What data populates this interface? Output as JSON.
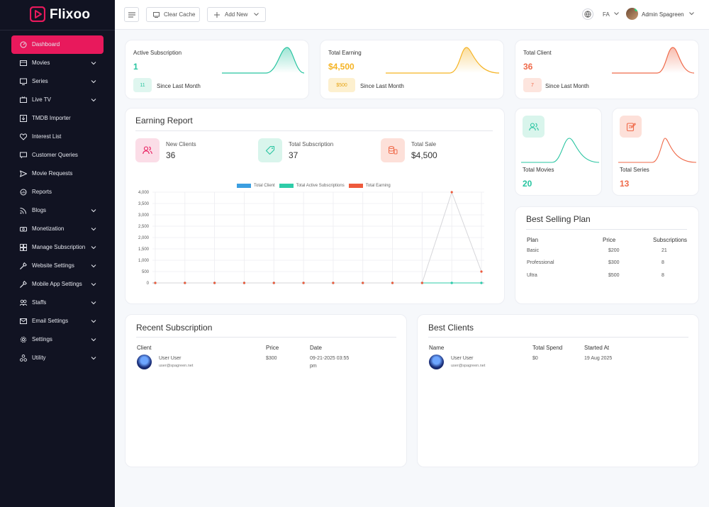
{
  "brand": {
    "name": "Flixoo",
    "accent": "#e8195c"
  },
  "sidebar": {
    "items": [
      {
        "label": "Dashboard",
        "icon": "dashboard-icon",
        "active": true,
        "has_children": false
      },
      {
        "label": "Movies",
        "icon": "movie-icon",
        "has_children": true
      },
      {
        "label": "Series",
        "icon": "series-icon",
        "has_children": true
      },
      {
        "label": "Live TV",
        "icon": "tv-icon",
        "has_children": true
      },
      {
        "label": "TMDB Importer",
        "icon": "import-icon",
        "has_children": false
      },
      {
        "label": "Interest List",
        "icon": "heart-icon",
        "has_children": false
      },
      {
        "label": "Customer Queries",
        "icon": "query-icon",
        "has_children": false
      },
      {
        "label": "Movie Requests",
        "icon": "send-icon",
        "has_children": false
      },
      {
        "label": "Reports",
        "icon": "report-icon",
        "has_children": false
      },
      {
        "label": "Blogs",
        "icon": "rss-icon",
        "has_children": true
      },
      {
        "label": "Monetization",
        "icon": "money-icon",
        "has_children": true
      },
      {
        "label": "Manage Subscription",
        "icon": "subscription-icon",
        "has_children": true
      },
      {
        "label": "Website Settings",
        "icon": "wrench-icon",
        "has_children": true
      },
      {
        "label": "Mobile App Settings",
        "icon": "wrench-icon",
        "has_children": true
      },
      {
        "label": "Staffs",
        "icon": "staff-icon",
        "has_children": true
      },
      {
        "label": "Email Settings",
        "icon": "mail-icon",
        "has_children": true
      },
      {
        "label": "Settings",
        "icon": "gear-icon",
        "has_children": true
      },
      {
        "label": "Utility",
        "icon": "utility-icon",
        "has_children": true
      }
    ]
  },
  "topbar": {
    "clear_cache": "Clear Cache",
    "add_new": "Add New",
    "language": "FA",
    "user_name": "Admin Spagreen"
  },
  "stats": [
    {
      "title": "Active Subscription",
      "value": "1",
      "pill": "11",
      "since": "Since Last Month",
      "color": "#27c4a0",
      "pill_bg": "#dff6ef"
    },
    {
      "title": "Total Earning",
      "value": "$4,500",
      "pill": "$500",
      "since": "Since Last Month",
      "color": "#f5b323",
      "pill_bg": "#fdf0cf"
    },
    {
      "title": "Total Client",
      "value": "36",
      "pill": "7",
      "since": "Since Last Month",
      "color": "#ef6a4a",
      "pill_bg": "#fde5de"
    }
  ],
  "earning_report": {
    "title": "Earning Report",
    "items": [
      {
        "label": "New Clients",
        "value": "36",
        "icon": "users-icon",
        "bg": "#fbdde7",
        "fg": "#e8195c"
      },
      {
        "label": "Total Subscription",
        "value": "37",
        "icon": "tag-icon",
        "bg": "#d9f5ec",
        "fg": "#27c4a0"
      },
      {
        "label": "Total Sale",
        "value": "$4,500",
        "icon": "coins-icon",
        "bg": "#fde0d9",
        "fg": "#ef6a4a"
      }
    ]
  },
  "chart_data": {
    "type": "line",
    "title": "",
    "xlabel": "",
    "ylabel": "",
    "ylim": [
      0,
      4000
    ],
    "yticks": [
      "0",
      "500",
      "1,000",
      "1,500",
      "2,000",
      "2,500",
      "3,000",
      "3,500",
      "4,000"
    ],
    "legend_position": "top",
    "series": [
      {
        "name": "Total Client",
        "color": "#3b9ee0",
        "values": [
          0,
          0,
          0,
          0,
          0,
          0,
          0,
          0,
          0,
          0,
          0,
          0
        ]
      },
      {
        "name": "Total Active Subscriptions",
        "color": "#2ecca8",
        "values": [
          0,
          0,
          0,
          0,
          0,
          0,
          0,
          0,
          0,
          0,
          0,
          0
        ]
      },
      {
        "name": "Total Earning",
        "color": "#ee5a3c",
        "values": [
          0,
          0,
          0,
          0,
          0,
          0,
          0,
          0,
          0,
          0,
          4000,
          500
        ]
      }
    ]
  },
  "small_stats": [
    {
      "label": "Total Movies",
      "value": "20",
      "icon": "users-icon",
      "color": "#27c4a0",
      "bg": "#d9f5ec"
    },
    {
      "label": "Total Series",
      "value": "13",
      "icon": "edit-icon",
      "color": "#ef6a4a",
      "bg": "#fde0d9"
    }
  ],
  "best_selling": {
    "title": "Best Selling Plan",
    "headers": [
      "Plan",
      "Price",
      "Subscriptions"
    ],
    "rows": [
      [
        "Basic",
        "$200",
        "21"
      ],
      [
        "Professional",
        "$300",
        "8"
      ],
      [
        "Ultra",
        "$500",
        "8"
      ]
    ]
  },
  "recent_subscription": {
    "title": "Recent Subscription",
    "headers": [
      "Client",
      "Price",
      "Date"
    ],
    "rows": [
      {
        "name": "User User",
        "email": "user@spagreen.net",
        "price": "$300",
        "date": "09-21-2025 03:55",
        "date2": "pm"
      }
    ]
  },
  "best_clients": {
    "title": "Best Clients",
    "headers": [
      "Name",
      "Total Spend",
      "Started At"
    ],
    "rows": [
      {
        "name": "User User",
        "email": "user@spagreen.net",
        "spend": "$0",
        "started": "19 Aug 2025"
      }
    ]
  }
}
